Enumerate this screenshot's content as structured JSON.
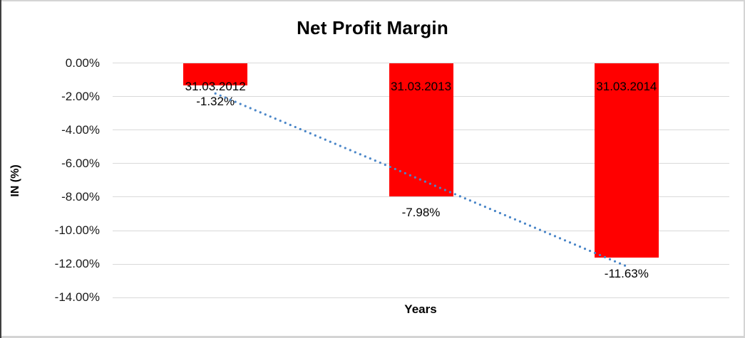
{
  "chart_data": {
    "type": "bar",
    "title": "Net Profit Margin",
    "xlabel": "Years",
    "ylabel": "IN (%)",
    "categories": [
      "31.03.2012",
      "31.03.2013",
      "31.03.2014"
    ],
    "values": [
      -1.32,
      -7.98,
      -11.63
    ],
    "data_labels": [
      "-1.32%",
      "-7.98%",
      "-11.63%"
    ],
    "y_ticks": [
      {
        "label": "0.00%",
        "value": 0
      },
      {
        "label": "-2.00%",
        "value": -2
      },
      {
        "label": "-4.00%",
        "value": -4
      },
      {
        "label": "-6.00%",
        "value": -6
      },
      {
        "label": "-8.00%",
        "value": -8
      },
      {
        "label": "-10.00%",
        "value": -10
      },
      {
        "label": "-12.00%",
        "value": -12
      },
      {
        "label": "-14.00%",
        "value": -14
      }
    ],
    "ylim": [
      -14,
      0
    ],
    "grid": true,
    "legend": "none",
    "bar_color": "#ff0000",
    "gridline_color": "#d9d9d9",
    "trendline": {
      "type": "linear",
      "style": "dotted",
      "color": "#4a86c8",
      "start_value": -1.82,
      "end_value": -12.13
    }
  }
}
